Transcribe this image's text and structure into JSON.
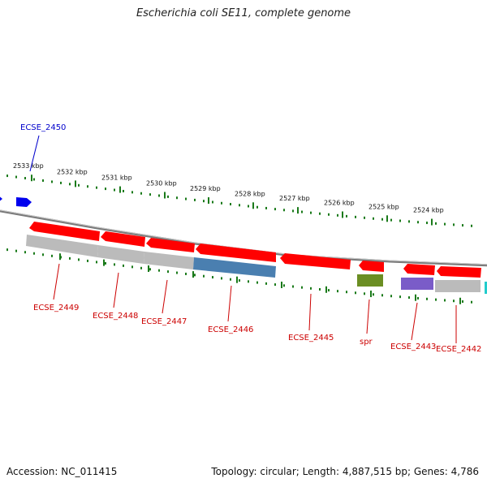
{
  "title": "Escherichia coli SE11, complete genome",
  "footer": {
    "accession": "Accession: NC_011415",
    "summary": "Topology: circular; Length: 4,887,515 bp; Genes: 4,786"
  },
  "ruler": {
    "labels": [
      "2533 kbp",
      "2532 kbp",
      "2531 kbp",
      "2530 kbp",
      "2529 kbp",
      "2528 kbp",
      "2527 kbp",
      "2526 kbp",
      "2525 kbp",
      "2524 kbp"
    ]
  },
  "genes": [
    {
      "name": "ECSE_2450",
      "color": "#0000cc",
      "strand": "forward"
    },
    {
      "name": "ECSE_2449",
      "color": "#cc0000",
      "strand": "reverse"
    },
    {
      "name": "ECSE_2448",
      "color": "#cc0000",
      "strand": "reverse"
    },
    {
      "name": "ECSE_2447",
      "color": "#cc0000",
      "strand": "reverse"
    },
    {
      "name": "ECSE_2446",
      "color": "#cc0000",
      "strand": "reverse"
    },
    {
      "name": "ECSE_2445",
      "color": "#cc0000",
      "strand": "reverse"
    },
    {
      "name": "spr",
      "color": "#cc0000",
      "strand": "reverse"
    },
    {
      "name": "ECSE_2443",
      "color": "#cc0000",
      "strand": "reverse"
    },
    {
      "name": "ECSE_2442",
      "color": "#cc0000",
      "strand": "reverse"
    }
  ],
  "colors": {
    "cds": "#ff0000",
    "gene_label": "#cc0000",
    "forward_gene": "#0000ee",
    "backbone": "#888888",
    "ruler_ticks": "#1a7a1a",
    "feature_gray": "#bbbbbb",
    "feature_blue": "#4a7fb0",
    "feature_olive": "#6b8e23",
    "feature_purple": "#7a5cc8",
    "feature_cyan": "#22cccc"
  }
}
